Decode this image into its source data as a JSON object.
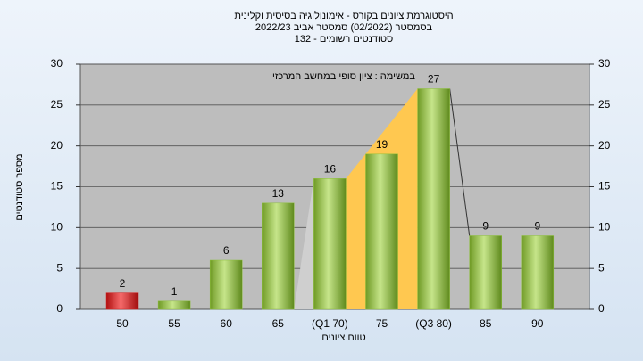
{
  "chart_data": {
    "type": "bar",
    "title": [
      "היסטוגרמת ציונים בקורס - אימונולוגיה בסיסית וקלינית",
      "בסמסטר (02/2022) סמסטר אביב 2022/23",
      "סטודנטים רשומים - 132"
    ],
    "annotation": "במשימה : ציון סופי במחשב המרכזי",
    "y_label": "מספר סטודנטים",
    "x_label": "טווח ציונים",
    "categories": [
      "50",
      "55",
      "60",
      "65",
      "(Q1 70)",
      "75",
      "(Q3 80)",
      "85",
      "90"
    ],
    "values": [
      2,
      1,
      6,
      13,
      16,
      19,
      27,
      9,
      9
    ],
    "colors": [
      "#d42020",
      "#8cbf3a",
      "#8cbf3a",
      "#8cbf3a",
      "#8cbf3a",
      "#8cbf3a",
      "#8cbf3a",
      "#8cbf3a",
      "#8cbf3a"
    ],
    "ylim": [
      0,
      30
    ],
    "yticks": [
      0,
      5,
      10,
      15,
      20,
      25,
      30
    ],
    "y2lim": [
      0,
      30
    ],
    "y2ticks": [
      0,
      5,
      10,
      15,
      20,
      25,
      30
    ],
    "grid": true
  }
}
